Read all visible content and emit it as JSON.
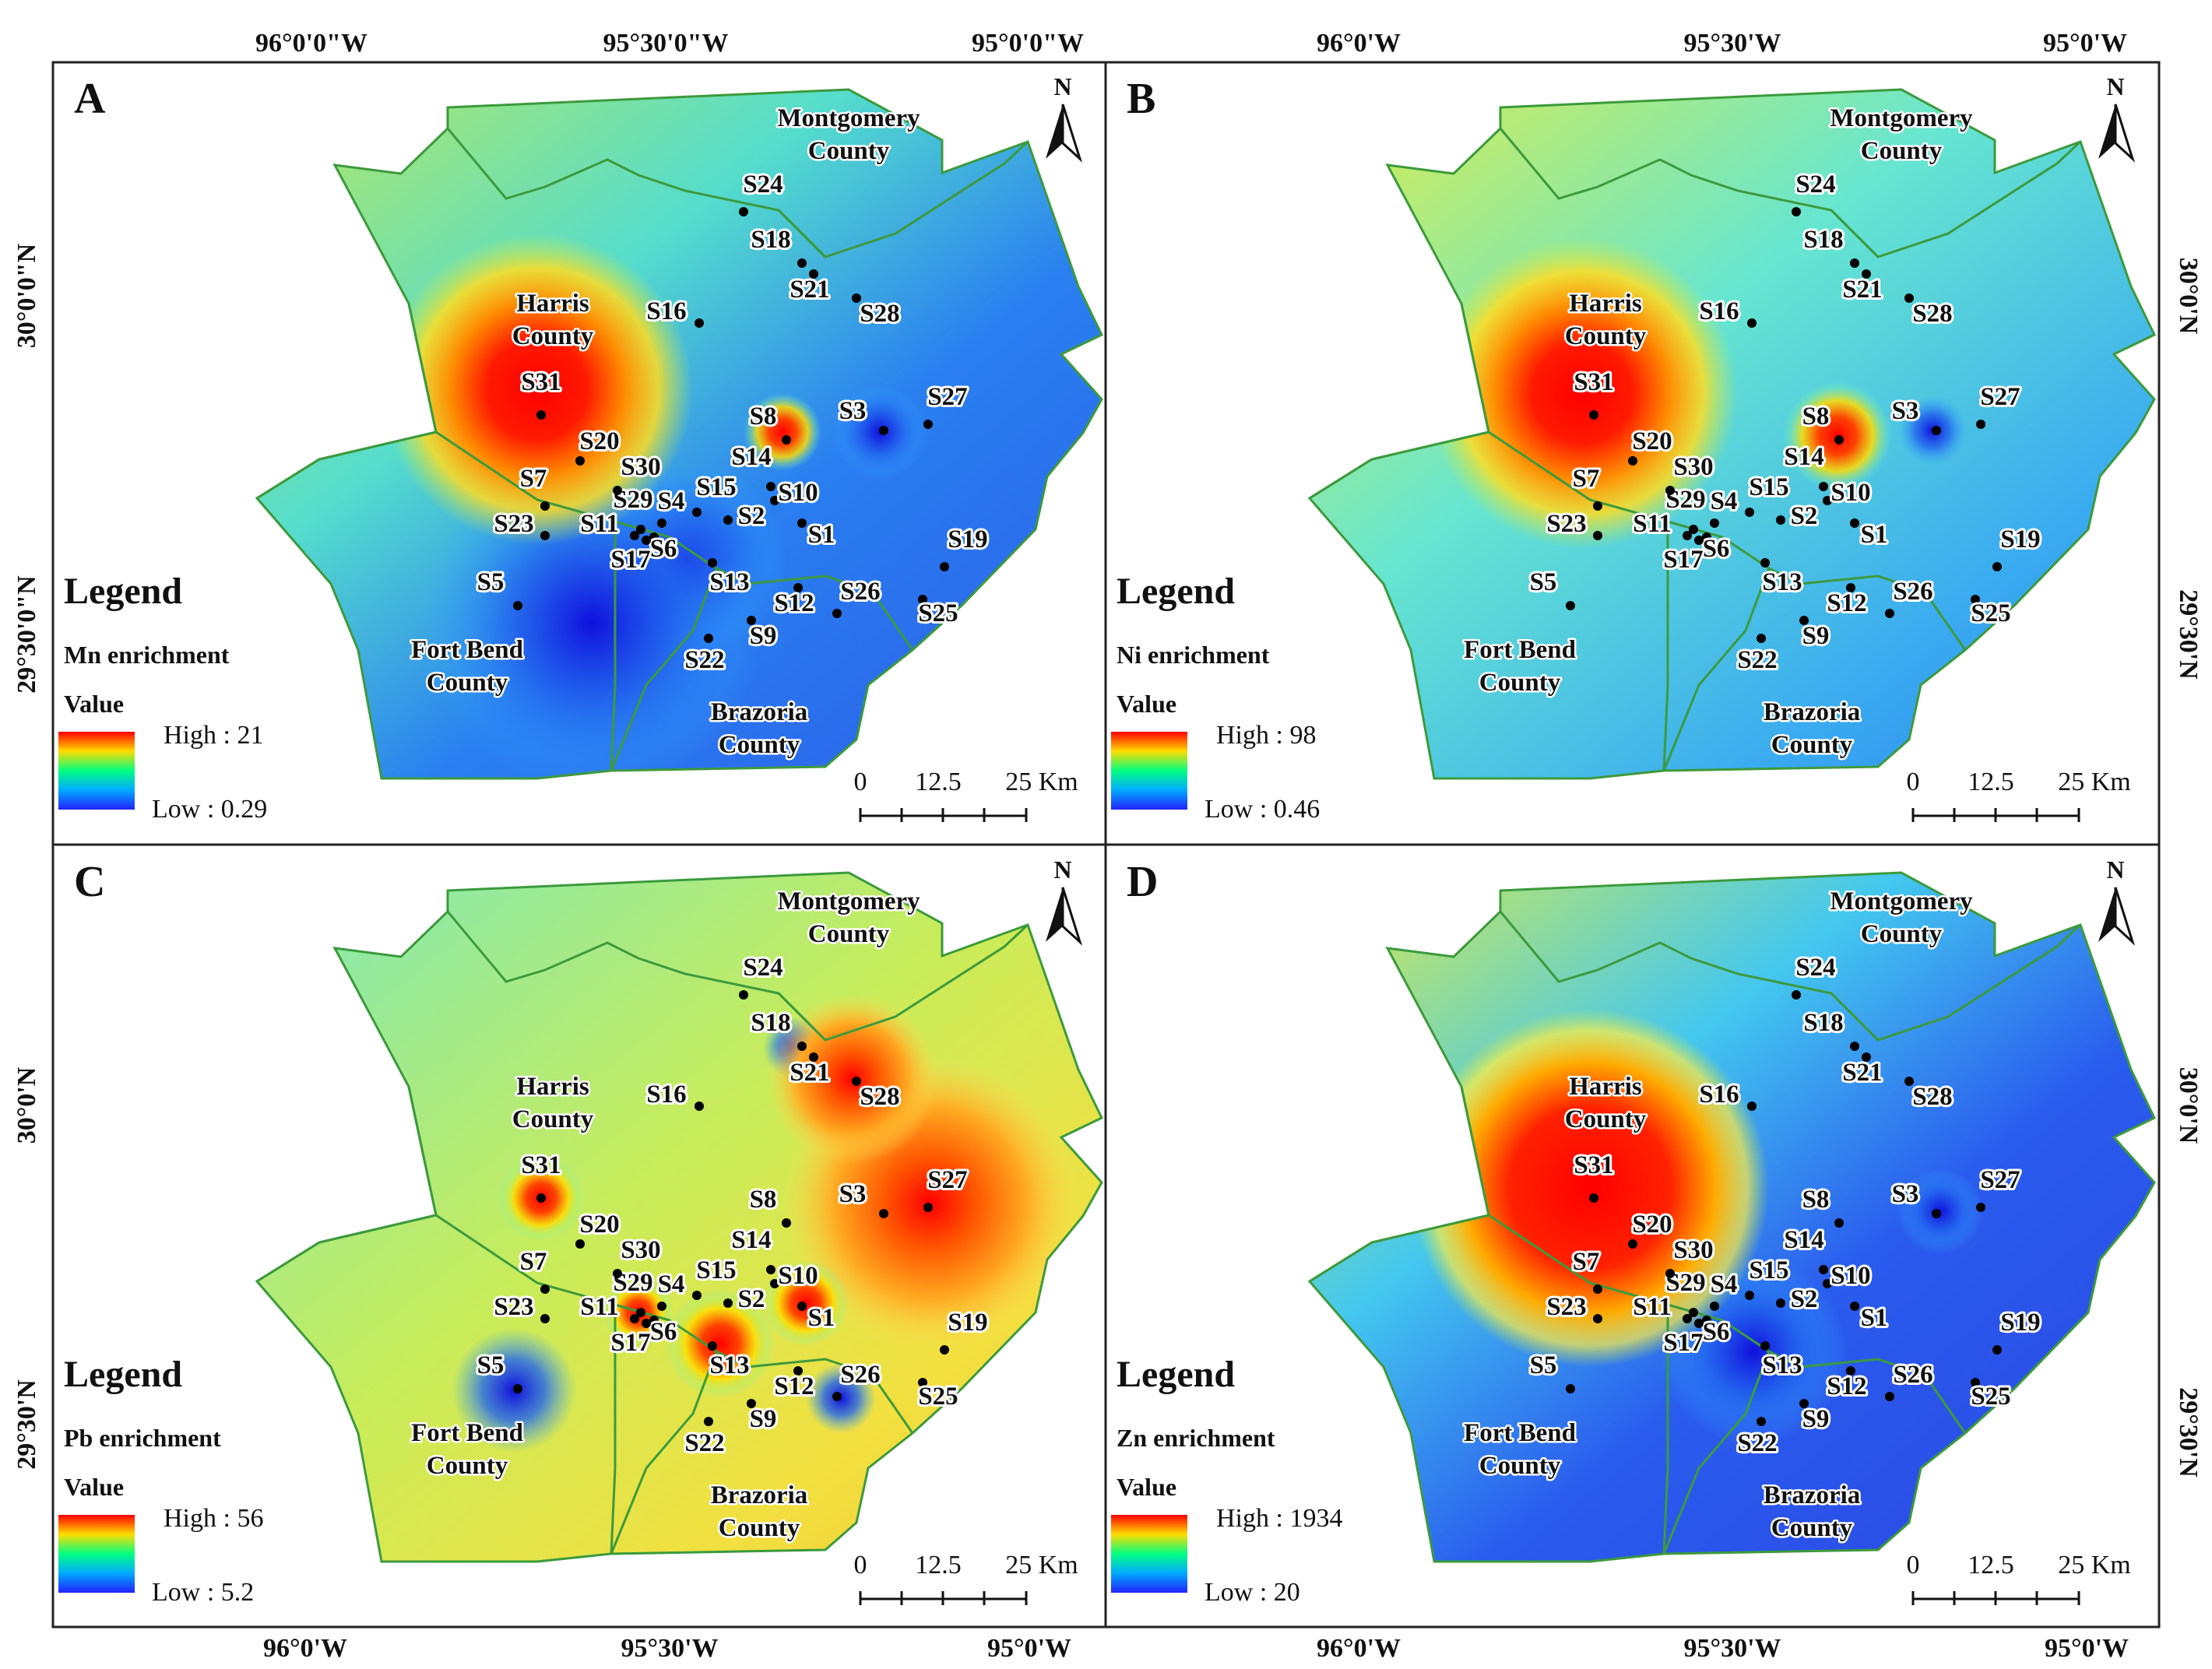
{
  "coordinates": {
    "top": [
      "96°0'0\"W",
      "95°30'0\"W",
      "95°0'0\"W",
      "96°0'W",
      "95°30'W",
      "95°0'W"
    ],
    "bottom": [
      "96°0'W",
      "95°30'W",
      "95°0'W",
      "96°0'W",
      "95°30'W",
      "95°0'W"
    ],
    "left": [
      "30°0'0\"N",
      "29°30'0\"N",
      "30°0'N",
      "29°30'N"
    ],
    "right": [
      "30°0'N",
      "29°30'N",
      "30°0'N",
      "29°30'N"
    ]
  },
  "counties": {
    "montgomery": [
      "Montgomery",
      "County"
    ],
    "harris": [
      "Harris",
      "County"
    ],
    "fortbend": [
      "Fort Bend",
      "County"
    ],
    "brazoria": [
      "Brazoria",
      "County"
    ]
  },
  "north_arrow": "N",
  "scale_bar": [
    "0",
    "12.5",
    "25 Km"
  ],
  "legend": {
    "title": "Legend",
    "value_label": "Value"
  },
  "panels": [
    {
      "letter": "A",
      "element": "Mn enrichment",
      "high": "High : 21",
      "low": "Low : 0.29"
    },
    {
      "letter": "B",
      "element": "Ni enrichment",
      "high": "High : 98",
      "low": "Low : 0.46"
    },
    {
      "letter": "C",
      "element": "Pb enrichment",
      "high": "High : 56",
      "low": "Low : 5.2"
    },
    {
      "letter": "D",
      "element": "Zn enrichment",
      "high": "High : 1934",
      "low": "Low : 20"
    }
  ],
  "sites": [
    "S1",
    "S2",
    "S3",
    "S4",
    "S5",
    "S6",
    "S7",
    "S8",
    "S9",
    "S10",
    "S11",
    "S12",
    "S13",
    "S14",
    "S15",
    "S16",
    "S17",
    "S18",
    "S19",
    "S20",
    "S21",
    "S22",
    "S23",
    "S24",
    "S25",
    "S26",
    "S27",
    "S28",
    "S29",
    "S30",
    "S31"
  ],
  "colors": {
    "border": "#3c9a3c",
    "point": "#000000",
    "frame": "#222222"
  }
}
